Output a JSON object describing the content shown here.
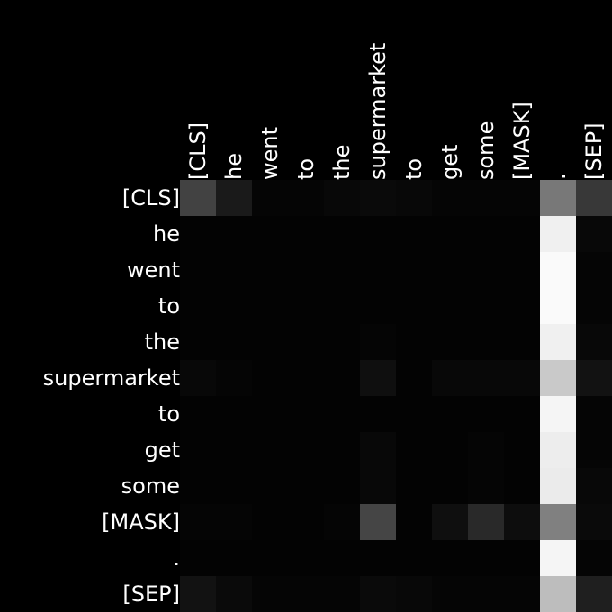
{
  "chart_data": {
    "type": "heatmap",
    "x_tokens": [
      "[CLS]",
      "he",
      "went",
      "to",
      "the",
      "supermarket",
      "to",
      "get",
      "some",
      "[MASK]",
      ".",
      "[SEP]"
    ],
    "y_tokens": [
      "[CLS]",
      "he",
      "went",
      "to",
      "the",
      "supermarket",
      "to",
      "get",
      "some",
      "[MASK]",
      ".",
      "[SEP]"
    ],
    "colormap": "grayscale (black = low, white = high)",
    "grid": false,
    "values": [
      [
        0.26,
        0.1,
        0.02,
        0.02,
        0.03,
        0.04,
        0.03,
        0.02,
        0.02,
        0.02,
        0.47,
        0.22
      ],
      [
        0.01,
        0.01,
        0.01,
        0.01,
        0.01,
        0.01,
        0.01,
        0.01,
        0.01,
        0.01,
        0.94,
        0.03
      ],
      [
        0.01,
        0.01,
        0.01,
        0.01,
        0.01,
        0.01,
        0.01,
        0.01,
        0.01,
        0.01,
        0.98,
        0.02
      ],
      [
        0.01,
        0.01,
        0.01,
        0.01,
        0.01,
        0.01,
        0.01,
        0.01,
        0.01,
        0.01,
        0.98,
        0.02
      ],
      [
        0.01,
        0.01,
        0.01,
        0.01,
        0.01,
        0.02,
        0.01,
        0.01,
        0.01,
        0.01,
        0.94,
        0.03
      ],
      [
        0.03,
        0.02,
        0.01,
        0.01,
        0.01,
        0.06,
        0.01,
        0.03,
        0.03,
        0.03,
        0.79,
        0.07
      ],
      [
        0.01,
        0.01,
        0.01,
        0.01,
        0.01,
        0.01,
        0.01,
        0.01,
        0.01,
        0.01,
        0.96,
        0.02
      ],
      [
        0.01,
        0.01,
        0.01,
        0.01,
        0.01,
        0.03,
        0.01,
        0.01,
        0.02,
        0.01,
        0.93,
        0.02
      ],
      [
        0.01,
        0.01,
        0.01,
        0.01,
        0.01,
        0.03,
        0.01,
        0.01,
        0.02,
        0.01,
        0.92,
        0.03
      ],
      [
        0.02,
        0.02,
        0.01,
        0.01,
        0.02,
        0.27,
        0.01,
        0.06,
        0.16,
        0.05,
        0.5,
        0.04
      ],
      [
        0.01,
        0.01,
        0.01,
        0.01,
        0.01,
        0.01,
        0.01,
        0.01,
        0.01,
        0.01,
        0.96,
        0.02
      ],
      [
        0.07,
        0.04,
        0.02,
        0.02,
        0.02,
        0.04,
        0.03,
        0.02,
        0.02,
        0.02,
        0.74,
        0.12
      ]
    ]
  }
}
